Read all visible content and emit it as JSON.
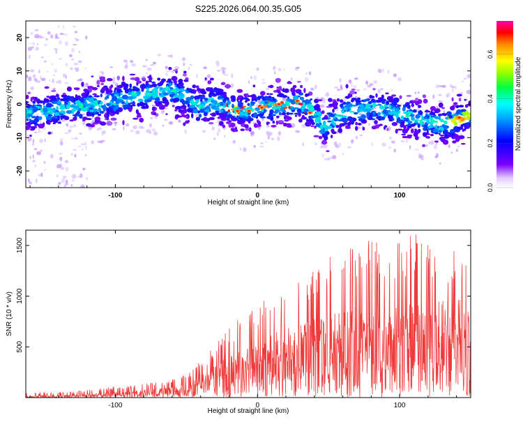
{
  "chart_data": [
    {
      "type": "heatmap",
      "title": "S225.2026.064.00.35.G05",
      "xlabel": "Height of straight line (km)",
      "ylabel": "Frequency (Hz)",
      "xlim": [
        -163,
        150
      ],
      "ylim": [
        -25,
        25
      ],
      "x_ticks": [
        -100,
        0,
        100
      ],
      "y_ticks": [
        -20,
        -10,
        0,
        10,
        20
      ],
      "colorbar": {
        "label": "Normalized spectral amplitude",
        "range": [
          0,
          0.75
        ],
        "ticks": [
          0.0,
          0.2,
          0.4,
          0.6
        ],
        "colors": [
          "#ffffff",
          "#7a00ff",
          "#0000ff",
          "#00ffff",
          "#00ff00",
          "#ffff00",
          "#ff0000",
          "#ff00ff"
        ]
      },
      "ridge": {
        "x": [
          -163,
          -150,
          -130,
          -110,
          -90,
          -75,
          -60,
          -50,
          -40,
          -30,
          -22,
          -15,
          -5,
          0,
          10,
          20,
          30,
          38,
          44,
          48,
          55,
          65,
          80,
          95,
          110,
          120,
          130,
          140,
          150
        ],
        "freq": [
          -3,
          -2,
          -1,
          0,
          2,
          3,
          4,
          2,
          -1,
          1,
          -1,
          -2,
          -1.5,
          -1,
          -0.5,
          0,
          0.5,
          -2,
          -5,
          -7,
          -4,
          -2,
          -1,
          -2,
          -4,
          -5,
          -6,
          -5,
          -3
        ]
      }
    },
    {
      "type": "line",
      "title": "",
      "xlabel": "Height of straight line (km)",
      "ylabel": "SNR (10 * v/v)",
      "xlim": [
        -163,
        150
      ],
      "ylim": [
        0,
        1650
      ],
      "x_ticks": [
        -100,
        0,
        100
      ],
      "y_ticks": [
        500,
        1000,
        1500
      ],
      "color": "#ee3a3a",
      "envelope": {
        "x": [
          -163,
          -140,
          -120,
          -100,
          -80,
          -65,
          -55,
          -45,
          -35,
          -25,
          -15,
          -5,
          5,
          15,
          25,
          40,
          55,
          70,
          85,
          100,
          115,
          130,
          150
        ],
        "mean": [
          12,
          15,
          22,
          35,
          50,
          60,
          70,
          100,
          170,
          230,
          280,
          320,
          370,
          420,
          450,
          480,
          520,
          540,
          560,
          570,
          590,
          600,
          610
        ],
        "peak": [
          50,
          55,
          75,
          110,
          140,
          160,
          200,
          290,
          430,
          600,
          760,
          850,
          1000,
          1080,
          1120,
          1300,
          1480,
          1550,
          1570,
          1550,
          1650,
          1500,
          1450
        ]
      }
    }
  ]
}
